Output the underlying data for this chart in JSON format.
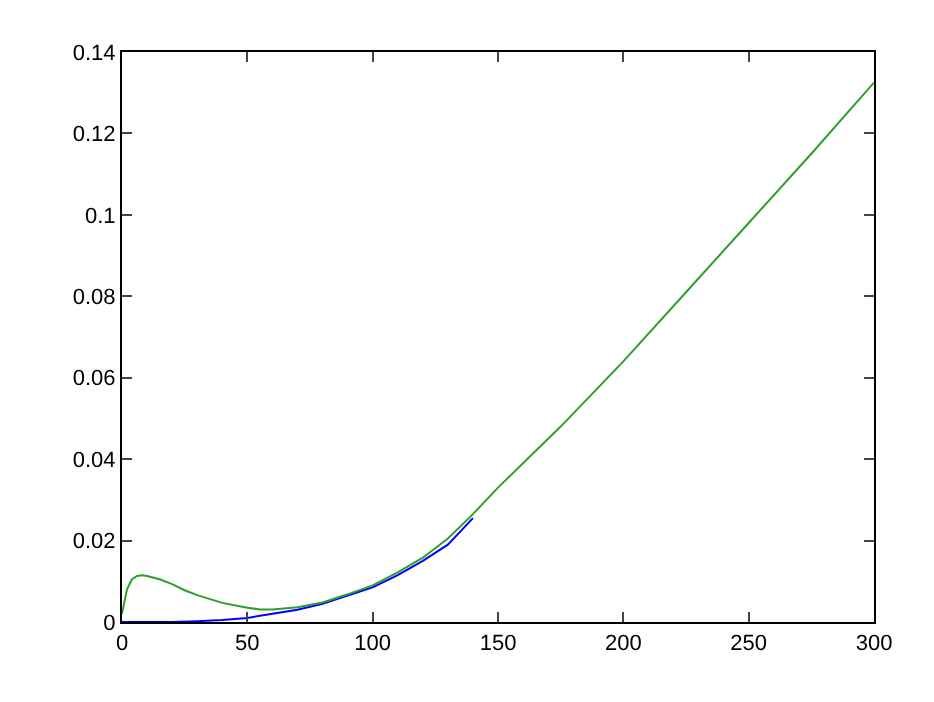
{
  "chart_data": {
    "type": "line",
    "xlim": [
      0,
      300
    ],
    "ylim": [
      0,
      0.14
    ],
    "xticks": [
      0,
      50,
      100,
      150,
      200,
      250,
      300
    ],
    "yticks": [
      0,
      0.02,
      0.04,
      0.06,
      0.08,
      0.1,
      0.12,
      0.14
    ],
    "series": [
      {
        "color": "#0000ff",
        "x": [
          0,
          10,
          20,
          30,
          40,
          50,
          60,
          70,
          80,
          90,
          100,
          110,
          120,
          130,
          140
        ],
        "values": [
          0,
          0,
          0,
          0.0002,
          0.0005,
          0.001,
          0.002,
          0.003,
          0.0045,
          0.0065,
          0.0085,
          0.0115,
          0.015,
          0.019,
          0.0255
        ]
      },
      {
        "color": "#2ca02c",
        "x": [
          0,
          1,
          2,
          4,
          6,
          8,
          10,
          15,
          20,
          25,
          30,
          40,
          50,
          55,
          60,
          70,
          80,
          90,
          100,
          110,
          120,
          130,
          140,
          150,
          175,
          200,
          225,
          250,
          275,
          300
        ],
        "values": [
          0.002,
          0.005,
          0.008,
          0.0105,
          0.0113,
          0.0115,
          0.0113,
          0.0105,
          0.0093,
          0.0078,
          0.0066,
          0.0047,
          0.0035,
          0.0031,
          0.0031,
          0.0036,
          0.0048,
          0.0068,
          0.009,
          0.0122,
          0.0158,
          0.0205,
          0.0265,
          0.033,
          0.048,
          0.064,
          0.081,
          0.098,
          0.115,
          0.1325
        ]
      }
    ]
  }
}
